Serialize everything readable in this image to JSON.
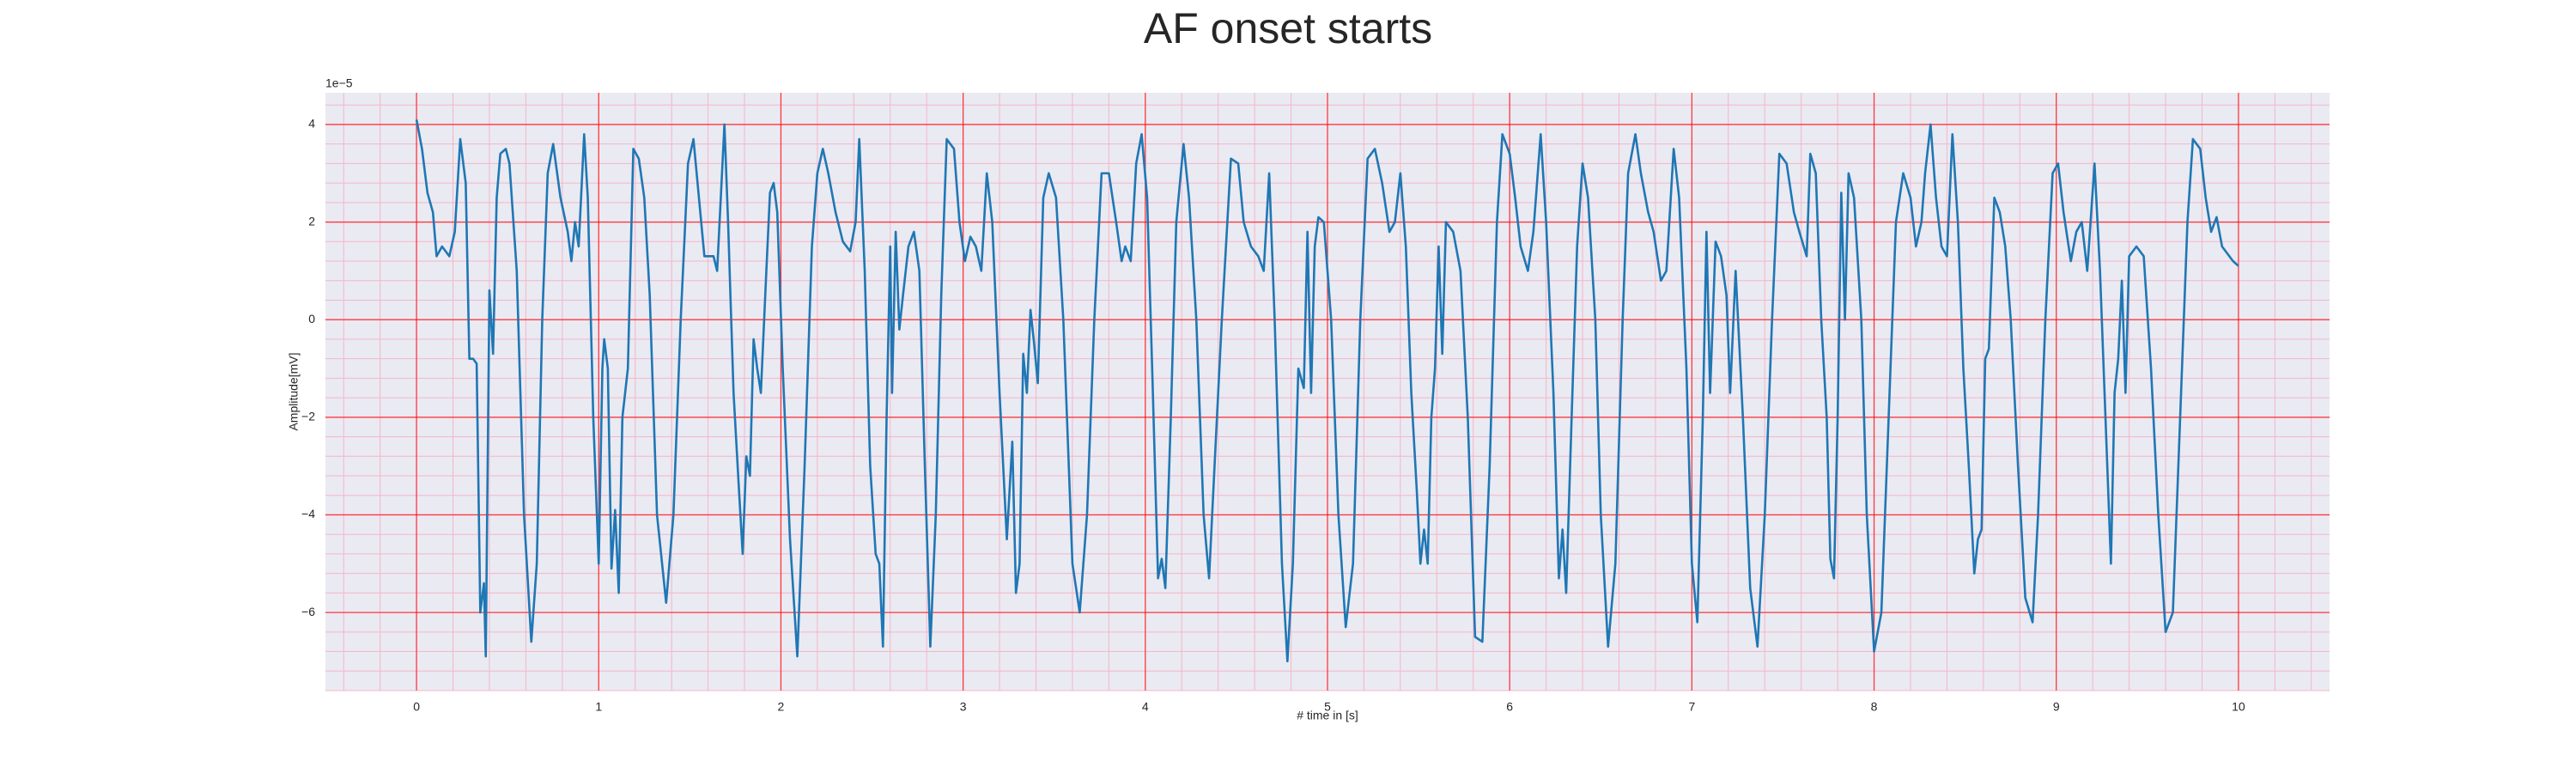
{
  "chart_data": {
    "type": "line",
    "title": "AF onset starts",
    "x_label": "# time in [s]",
    "y_label": "Amplitude[mV]",
    "y_offset_label": "1e−5",
    "color": "#1f77b4",
    "grid": true,
    "minor_grid": true,
    "xlim": [
      -0.5,
      10.5
    ],
    "ylim": [
      -7.6,
      4.65
    ],
    "xticks": [
      0,
      1,
      2,
      3,
      4,
      5,
      6,
      7,
      8,
      9,
      10
    ],
    "yticks": [
      {
        "value": -6,
        "label": "−6"
      },
      {
        "value": -4,
        "label": "−4"
      },
      {
        "value": -2,
        "label": "−2"
      },
      0,
      2,
      4
    ],
    "x": [
      0.0,
      0.03,
      0.06,
      0.09,
      0.11,
      0.14,
      0.18,
      0.21,
      0.24,
      0.27,
      0.29,
      0.31,
      0.33,
      0.35,
      0.37,
      0.38,
      0.4,
      0.42,
      0.44,
      0.46,
      0.49,
      0.51,
      0.55,
      0.59,
      0.63,
      0.66,
      0.69,
      0.72,
      0.75,
      0.79,
      0.83,
      0.85,
      0.87,
      0.89,
      0.92,
      0.94,
      0.97,
      1.0,
      1.02,
      1.03,
      1.05,
      1.07,
      1.09,
      1.11,
      1.13,
      1.16,
      1.19,
      1.22,
      1.25,
      1.28,
      1.32,
      1.37,
      1.41,
      1.45,
      1.49,
      1.52,
      1.55,
      1.58,
      1.63,
      1.65,
      1.69,
      1.71,
      1.74,
      1.77,
      1.79,
      1.81,
      1.83,
      1.85,
      1.87,
      1.89,
      1.92,
      1.94,
      1.96,
      1.98,
      2.01,
      2.05,
      2.09,
      2.13,
      2.17,
      2.2,
      2.23,
      2.26,
      2.3,
      2.34,
      2.38,
      2.41,
      2.43,
      2.46,
      2.49,
      2.52,
      2.54,
      2.56,
      2.58,
      2.6,
      2.61,
      2.63,
      2.65,
      2.67,
      2.7,
      2.73,
      2.76,
      2.79,
      2.82,
      2.85,
      2.88,
      2.91,
      2.95,
      2.98,
      3.01,
      3.04,
      3.07,
      3.1,
      3.13,
      3.16,
      3.2,
      3.24,
      3.27,
      3.29,
      3.31,
      3.33,
      3.35,
      3.37,
      3.39,
      3.41,
      3.44,
      3.47,
      3.51,
      3.55,
      3.6,
      3.64,
      3.68,
      3.72,
      3.76,
      3.8,
      3.84,
      3.87,
      3.89,
      3.92,
      3.95,
      3.98,
      4.01,
      4.04,
      4.07,
      4.09,
      4.11,
      4.14,
      4.17,
      4.21,
      4.24,
      4.28,
      4.32,
      4.35,
      4.38,
      4.42,
      4.47,
      4.51,
      4.54,
      4.58,
      4.62,
      4.65,
      4.68,
      4.71,
      4.75,
      4.78,
      4.81,
      4.84,
      4.87,
      4.89,
      4.91,
      4.93,
      4.95,
      4.98,
      5.02,
      5.06,
      5.1,
      5.14,
      5.18,
      5.22,
      5.26,
      5.3,
      5.34,
      5.37,
      5.4,
      5.43,
      5.46,
      5.49,
      5.51,
      5.53,
      5.55,
      5.57,
      5.59,
      5.61,
      5.63,
      5.65,
      5.69,
      5.73,
      5.77,
      5.81,
      5.85,
      5.89,
      5.93,
      5.96,
      6.0,
      6.03,
      6.06,
      6.1,
      6.13,
      6.17,
      6.2,
      6.24,
      6.27,
      6.29,
      6.31,
      6.34,
      6.37,
      6.4,
      6.43,
      6.47,
      6.5,
      6.54,
      6.58,
      6.62,
      6.65,
      6.69,
      6.72,
      6.76,
      6.79,
      6.83,
      6.86,
      6.9,
      6.93,
      6.97,
      7.0,
      7.03,
      7.06,
      7.08,
      7.1,
      7.13,
      7.16,
      7.19,
      7.21,
      7.24,
      7.28,
      7.32,
      7.36,
      7.4,
      7.44,
      7.48,
      7.52,
      7.56,
      7.59,
      7.63,
      7.65,
      7.68,
      7.71,
      7.74,
      7.76,
      7.78,
      7.8,
      7.82,
      7.84,
      7.86,
      7.89,
      7.93,
      7.96,
      8.0,
      8.04,
      8.08,
      8.12,
      8.16,
      8.2,
      8.23,
      8.26,
      8.28,
      8.31,
      8.34,
      8.37,
      8.4,
      8.43,
      8.46,
      8.49,
      8.52,
      8.55,
      8.57,
      8.59,
      8.61,
      8.63,
      8.66,
      8.69,
      8.72,
      8.75,
      8.79,
      8.83,
      8.87,
      8.9,
      8.94,
      8.98,
      9.01,
      9.04,
      9.08,
      9.11,
      9.14,
      9.17,
      9.21,
      9.24,
      9.27,
      9.3,
      9.32,
      9.34,
      9.36,
      9.38,
      9.4,
      9.44,
      9.48,
      9.52,
      9.56,
      9.6,
      9.64,
      9.68,
      9.72,
      9.75,
      9.79,
      9.82,
      9.85,
      9.88,
      9.91,
      9.97,
      10.0
    ],
    "values": [
      4.1,
      3.5,
      2.6,
      2.2,
      1.3,
      1.5,
      1.3,
      1.8,
      3.7,
      2.8,
      -0.8,
      -0.8,
      -0.9,
      -6.0,
      -5.4,
      -6.9,
      0.6,
      -0.7,
      2.5,
      3.4,
      3.5,
      3.2,
      1.0,
      -4,
      -6.6,
      -5,
      0,
      3,
      3.6,
      2.5,
      1.8,
      1.2,
      2,
      1.5,
      3.8,
      2.5,
      -2,
      -5,
      -1.0,
      -0.4,
      -1.0,
      -5.1,
      -3.9,
      -5.6,
      -2,
      -1,
      3.5,
      3.3,
      2.5,
      0.5,
      -4,
      -5.8,
      -4,
      0,
      3.2,
      3.7,
      2.5,
      1.3,
      1.3,
      1.0,
      4,
      2,
      -1.5,
      -3.5,
      -4.8,
      -2.8,
      -3.2,
      -0.4,
      -1.0,
      -1.5,
      1.0,
      2.6,
      2.8,
      2.2,
      -1,
      -4.5,
      -6.9,
      -3,
      1.5,
      3,
      3.5,
      3.0,
      2.2,
      1.6,
      1.4,
      2.0,
      3.7,
      1.0,
      -3,
      -4.8,
      -5.0,
      -6.7,
      -2,
      1.5,
      -1.5,
      1.8,
      -0.2,
      0.5,
      1.5,
      1.8,
      1.0,
      -3,
      -6.7,
      -4,
      0.5,
      3.7,
      3.5,
      2.0,
      1.2,
      1.7,
      1.5,
      1.0,
      3.0,
      2.0,
      -1.5,
      -4.5,
      -2.5,
      -5.6,
      -5.0,
      -0.7,
      -1.5,
      0.2,
      -0.5,
      -1.3,
      2.5,
      3.0,
      2.5,
      0,
      -5,
      -6.0,
      -4,
      0,
      3.0,
      3.0,
      2.0,
      1.2,
      1.5,
      1.2,
      3.2,
      3.8,
      2.5,
      -1.3,
      -5.3,
      -4.9,
      -5.5,
      -2,
      2,
      3.6,
      2.5,
      0,
      -4,
      -5.3,
      -3,
      0,
      3.3,
      3.2,
      2.0,
      1.5,
      1.3,
      1.0,
      3.0,
      0,
      -5,
      -7.0,
      -5,
      -1.0,
      -1.4,
      1.8,
      -1.5,
      1.5,
      2.1,
      2.0,
      0,
      -4,
      -6.3,
      -5,
      0,
      3.3,
      3.5,
      2.8,
      1.8,
      2.0,
      3.0,
      1.5,
      -1.5,
      -3.5,
      -5.0,
      -4.3,
      -5.0,
      -2,
      -1,
      1.5,
      -0.7,
      2.0,
      1.8,
      1.0,
      -2,
      -6.5,
      -6.6,
      -3,
      2,
      3.8,
      3.4,
      2.5,
      1.5,
      1.0,
      1.8,
      3.8,
      2.0,
      -1.5,
      -5.3,
      -4.3,
      -5.6,
      -2,
      1.5,
      3.2,
      2.5,
      0,
      -4,
      -6.7,
      -5,
      0,
      3,
      3.8,
      3.0,
      2.2,
      1.8,
      0.8,
      1.0,
      3.5,
      2.5,
      -1,
      -5,
      -6.2,
      -2,
      1.8,
      -1.5,
      1.6,
      1.3,
      0.5,
      -1.5,
      1.0,
      -2,
      -5.5,
      -6.7,
      -4,
      0,
      3.4,
      3.2,
      2.2,
      1.8,
      1.3,
      3.4,
      3.0,
      0,
      -2,
      -4.9,
      -5.3,
      -2,
      2.6,
      0,
      3.0,
      2.5,
      0,
      -4,
      -6.8,
      -6,
      -2,
      2,
      3.0,
      2.5,
      1.5,
      2.0,
      3.0,
      4.0,
      2.5,
      1.5,
      1.3,
      3.8,
      2.0,
      -1,
      -3,
      -5.2,
      -4.5,
      -4.3,
      -0.8,
      -0.6,
      2.5,
      2.2,
      1.5,
      0,
      -3,
      -5.7,
      -6.2,
      -4,
      0,
      3.0,
      3.2,
      2.2,
      1.2,
      1.8,
      2.0,
      1.0,
      3.2,
      1.0,
      -2,
      -5.0,
      -1.5,
      -0.8,
      0.8,
      -1.5,
      1.3,
      1.5,
      1.3,
      -1,
      -4,
      -6.4,
      -6.0,
      -2,
      2,
      3.7,
      3.5,
      2.5,
      1.8,
      2.1,
      1.5,
      1.2,
      1.1
    ]
  }
}
